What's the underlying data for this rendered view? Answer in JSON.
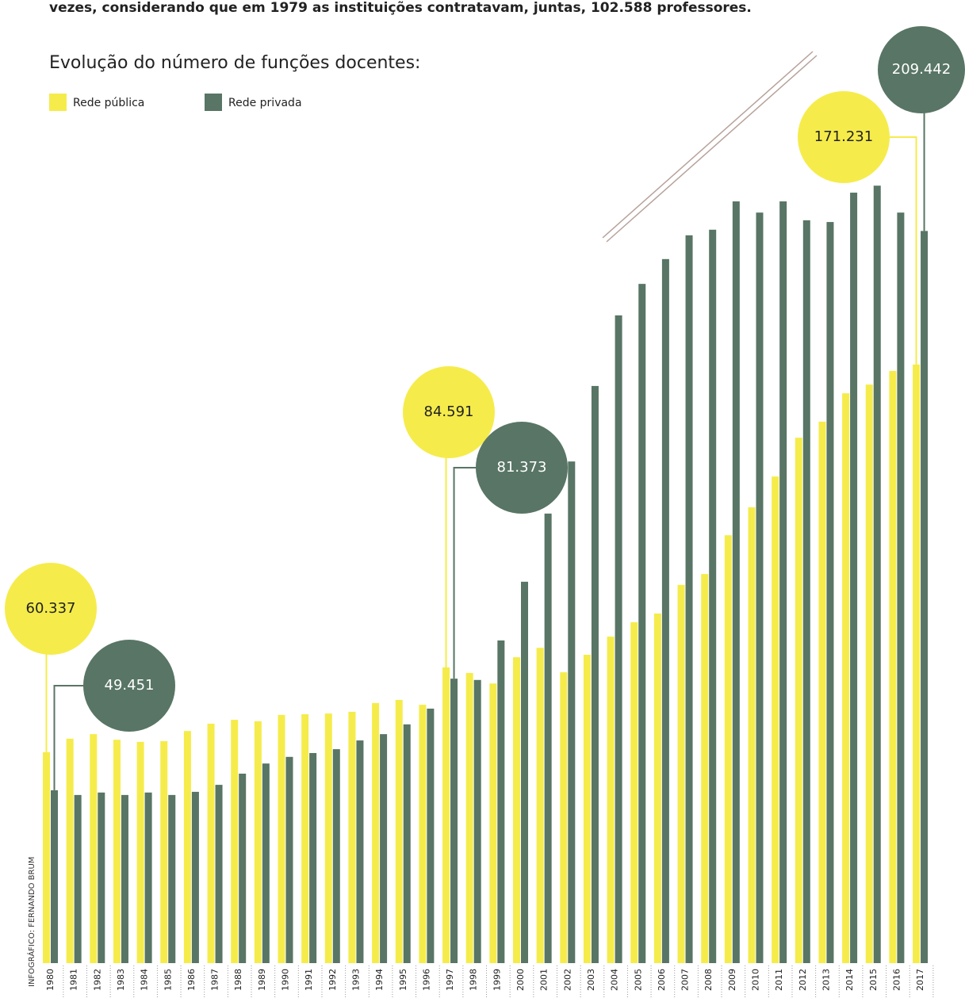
{
  "intro": "vezes, considerando que em 1979 as instituições contratavam, juntas, 102.588 professores.",
  "credit": "INFOGRÁFICO: FERNANDO BRUM",
  "chart_data": {
    "type": "bar",
    "title": "Evolução do número de funções docentes:",
    "categories": [
      "1980",
      "1981",
      "1982",
      "1983",
      "1984",
      "1985",
      "1986",
      "1987",
      "1988",
      "1989",
      "1990",
      "1991",
      "1992",
      "1993",
      "1994",
      "1995",
      "1996",
      "1997",
      "1998",
      "1999",
      "2000",
      "2001",
      "2002",
      "2003",
      "2004",
      "2005",
      "2006",
      "2007",
      "2008",
      "2009",
      "2010",
      "2011",
      "2012",
      "2013",
      "2014",
      "2015",
      "2016",
      "2017"
    ],
    "series": [
      {
        "name": "Rede pública",
        "color": "#f5ec4b",
        "values": [
          60337,
          64200,
          65500,
          63900,
          63300,
          63500,
          66400,
          68500,
          69600,
          69200,
          71000,
          71200,
          71400,
          71900,
          74400,
          75300,
          73900,
          84591,
          83000,
          80000,
          87500,
          90200,
          83200,
          88200,
          93400,
          97500,
          100000,
          108200,
          111300,
          122400,
          130400,
          139200,
          150300,
          154900,
          163000,
          165500,
          169400,
          171231
        ],
        "value_labels": [
          "60.337",
          null,
          null,
          null,
          null,
          null,
          null,
          null,
          null,
          null,
          null,
          null,
          null,
          null,
          null,
          null,
          null,
          "84.591",
          null,
          null,
          null,
          null,
          null,
          null,
          null,
          null,
          null,
          null,
          null,
          null,
          null,
          null,
          null,
          null,
          null,
          null,
          null,
          "171.231"
        ]
      },
      {
        "name": "Rede privada",
        "color": "#587565",
        "values": [
          49451,
          48100,
          48800,
          48100,
          48800,
          48100,
          49000,
          51000,
          54200,
          57100,
          59000,
          60100,
          61200,
          63700,
          65500,
          68300,
          72800,
          81373,
          81000,
          92300,
          109100,
          128600,
          143500,
          165100,
          185300,
          194300,
          201400,
          208200,
          209800,
          217900,
          214700,
          217900,
          212500,
          212000,
          220400,
          222400,
          214700,
          209442
        ],
        "value_labels": [
          "49.451",
          null,
          null,
          null,
          null,
          null,
          null,
          null,
          null,
          null,
          null,
          null,
          null,
          null,
          null,
          null,
          null,
          "81.373",
          null,
          null,
          null,
          null,
          null,
          null,
          null,
          null,
          null,
          null,
          null,
          null,
          null,
          null,
          null,
          null,
          null,
          null,
          null,
          "209.442"
        ]
      }
    ]
  }
}
